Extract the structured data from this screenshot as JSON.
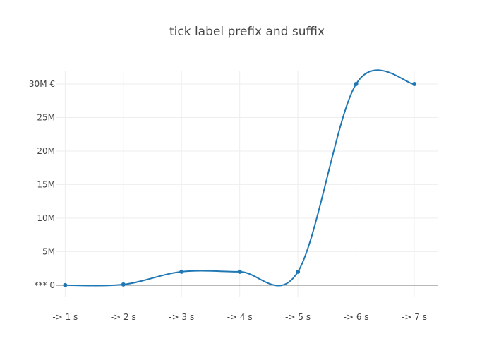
{
  "chart_data": {
    "type": "line",
    "title": "tick label prefix and suffix",
    "x": [
      1,
      2,
      3,
      4,
      5,
      6,
      7
    ],
    "y": [
      0,
      100000,
      2000000,
      2000000,
      2000000,
      30000000,
      30000000
    ],
    "x_tick_labels": [
      "-> 1 s",
      "-> 2 s",
      "-> 3 s",
      "-> 4 s",
      "-> 5 s",
      "-> 6 s",
      "-> 7 s"
    ],
    "y_ticks": [
      0,
      5000000,
      10000000,
      15000000,
      20000000,
      25000000,
      30000000
    ],
    "y_tick_labels": [
      "*** 0",
      "5M",
      "10M",
      "15M",
      "20M",
      "25M",
      "30M €"
    ],
    "xlim": [
      0.85,
      7.4
    ],
    "ylim": [
      -1700000,
      32000000
    ],
    "line_shape": "spline",
    "grid": true,
    "series_color": "#1f77b4"
  }
}
